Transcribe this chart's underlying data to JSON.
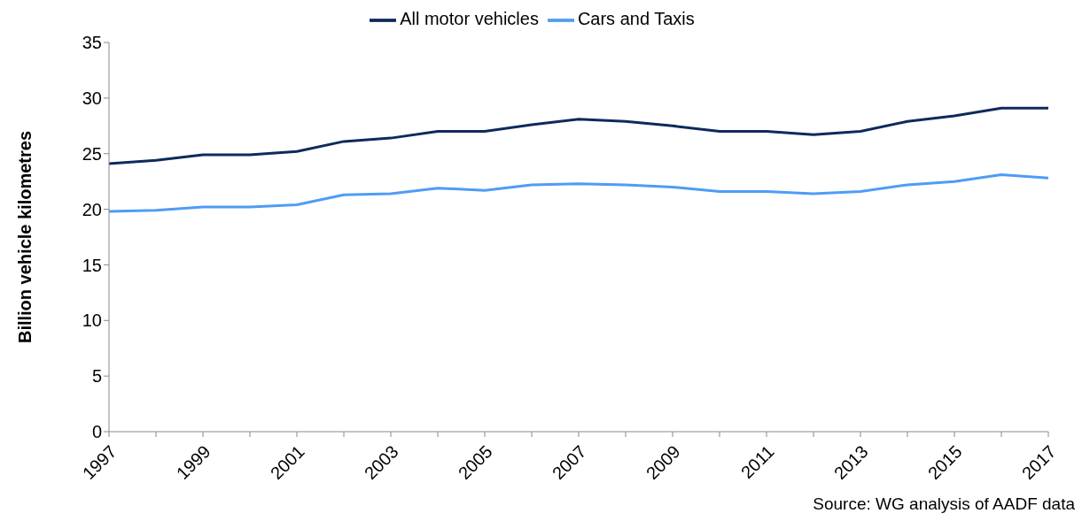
{
  "chart_data": {
    "type": "line",
    "ylabel": "Billion vehicle kilometres",
    "categories": [
      "1997",
      null,
      "1999",
      null,
      "2001",
      null,
      "2003",
      null,
      "2005",
      null,
      "2007",
      null,
      "2009",
      null,
      "2011",
      null,
      "2013",
      null,
      "2015",
      null,
      "2017"
    ],
    "series": [
      {
        "name": "All motor vehicles",
        "color": "#0e2a5c",
        "values": [
          24.1,
          24.4,
          24.9,
          24.9,
          25.2,
          26.1,
          26.4,
          27.0,
          27.0,
          27.6,
          28.1,
          27.9,
          27.5,
          27.0,
          27.0,
          26.7,
          27.0,
          27.9,
          28.4,
          29.1,
          29.1
        ]
      },
      {
        "name": "Cars and Taxis",
        "color": "#4f9cf5",
        "values": [
          19.8,
          19.9,
          20.2,
          20.2,
          20.4,
          21.3,
          21.4,
          21.9,
          21.7,
          22.2,
          22.3,
          22.2,
          22.0,
          21.6,
          21.6,
          21.4,
          21.6,
          22.2,
          22.5,
          23.1,
          22.8
        ]
      }
    ],
    "ylim": [
      0,
      35
    ],
    "yticks": [
      0,
      5,
      10,
      15,
      20,
      25,
      30,
      35
    ],
    "grid": false,
    "legend": "top",
    "marker": "none",
    "line_style": "solid",
    "annotations": [
      "Source: WG analysis of AADF data"
    ]
  }
}
